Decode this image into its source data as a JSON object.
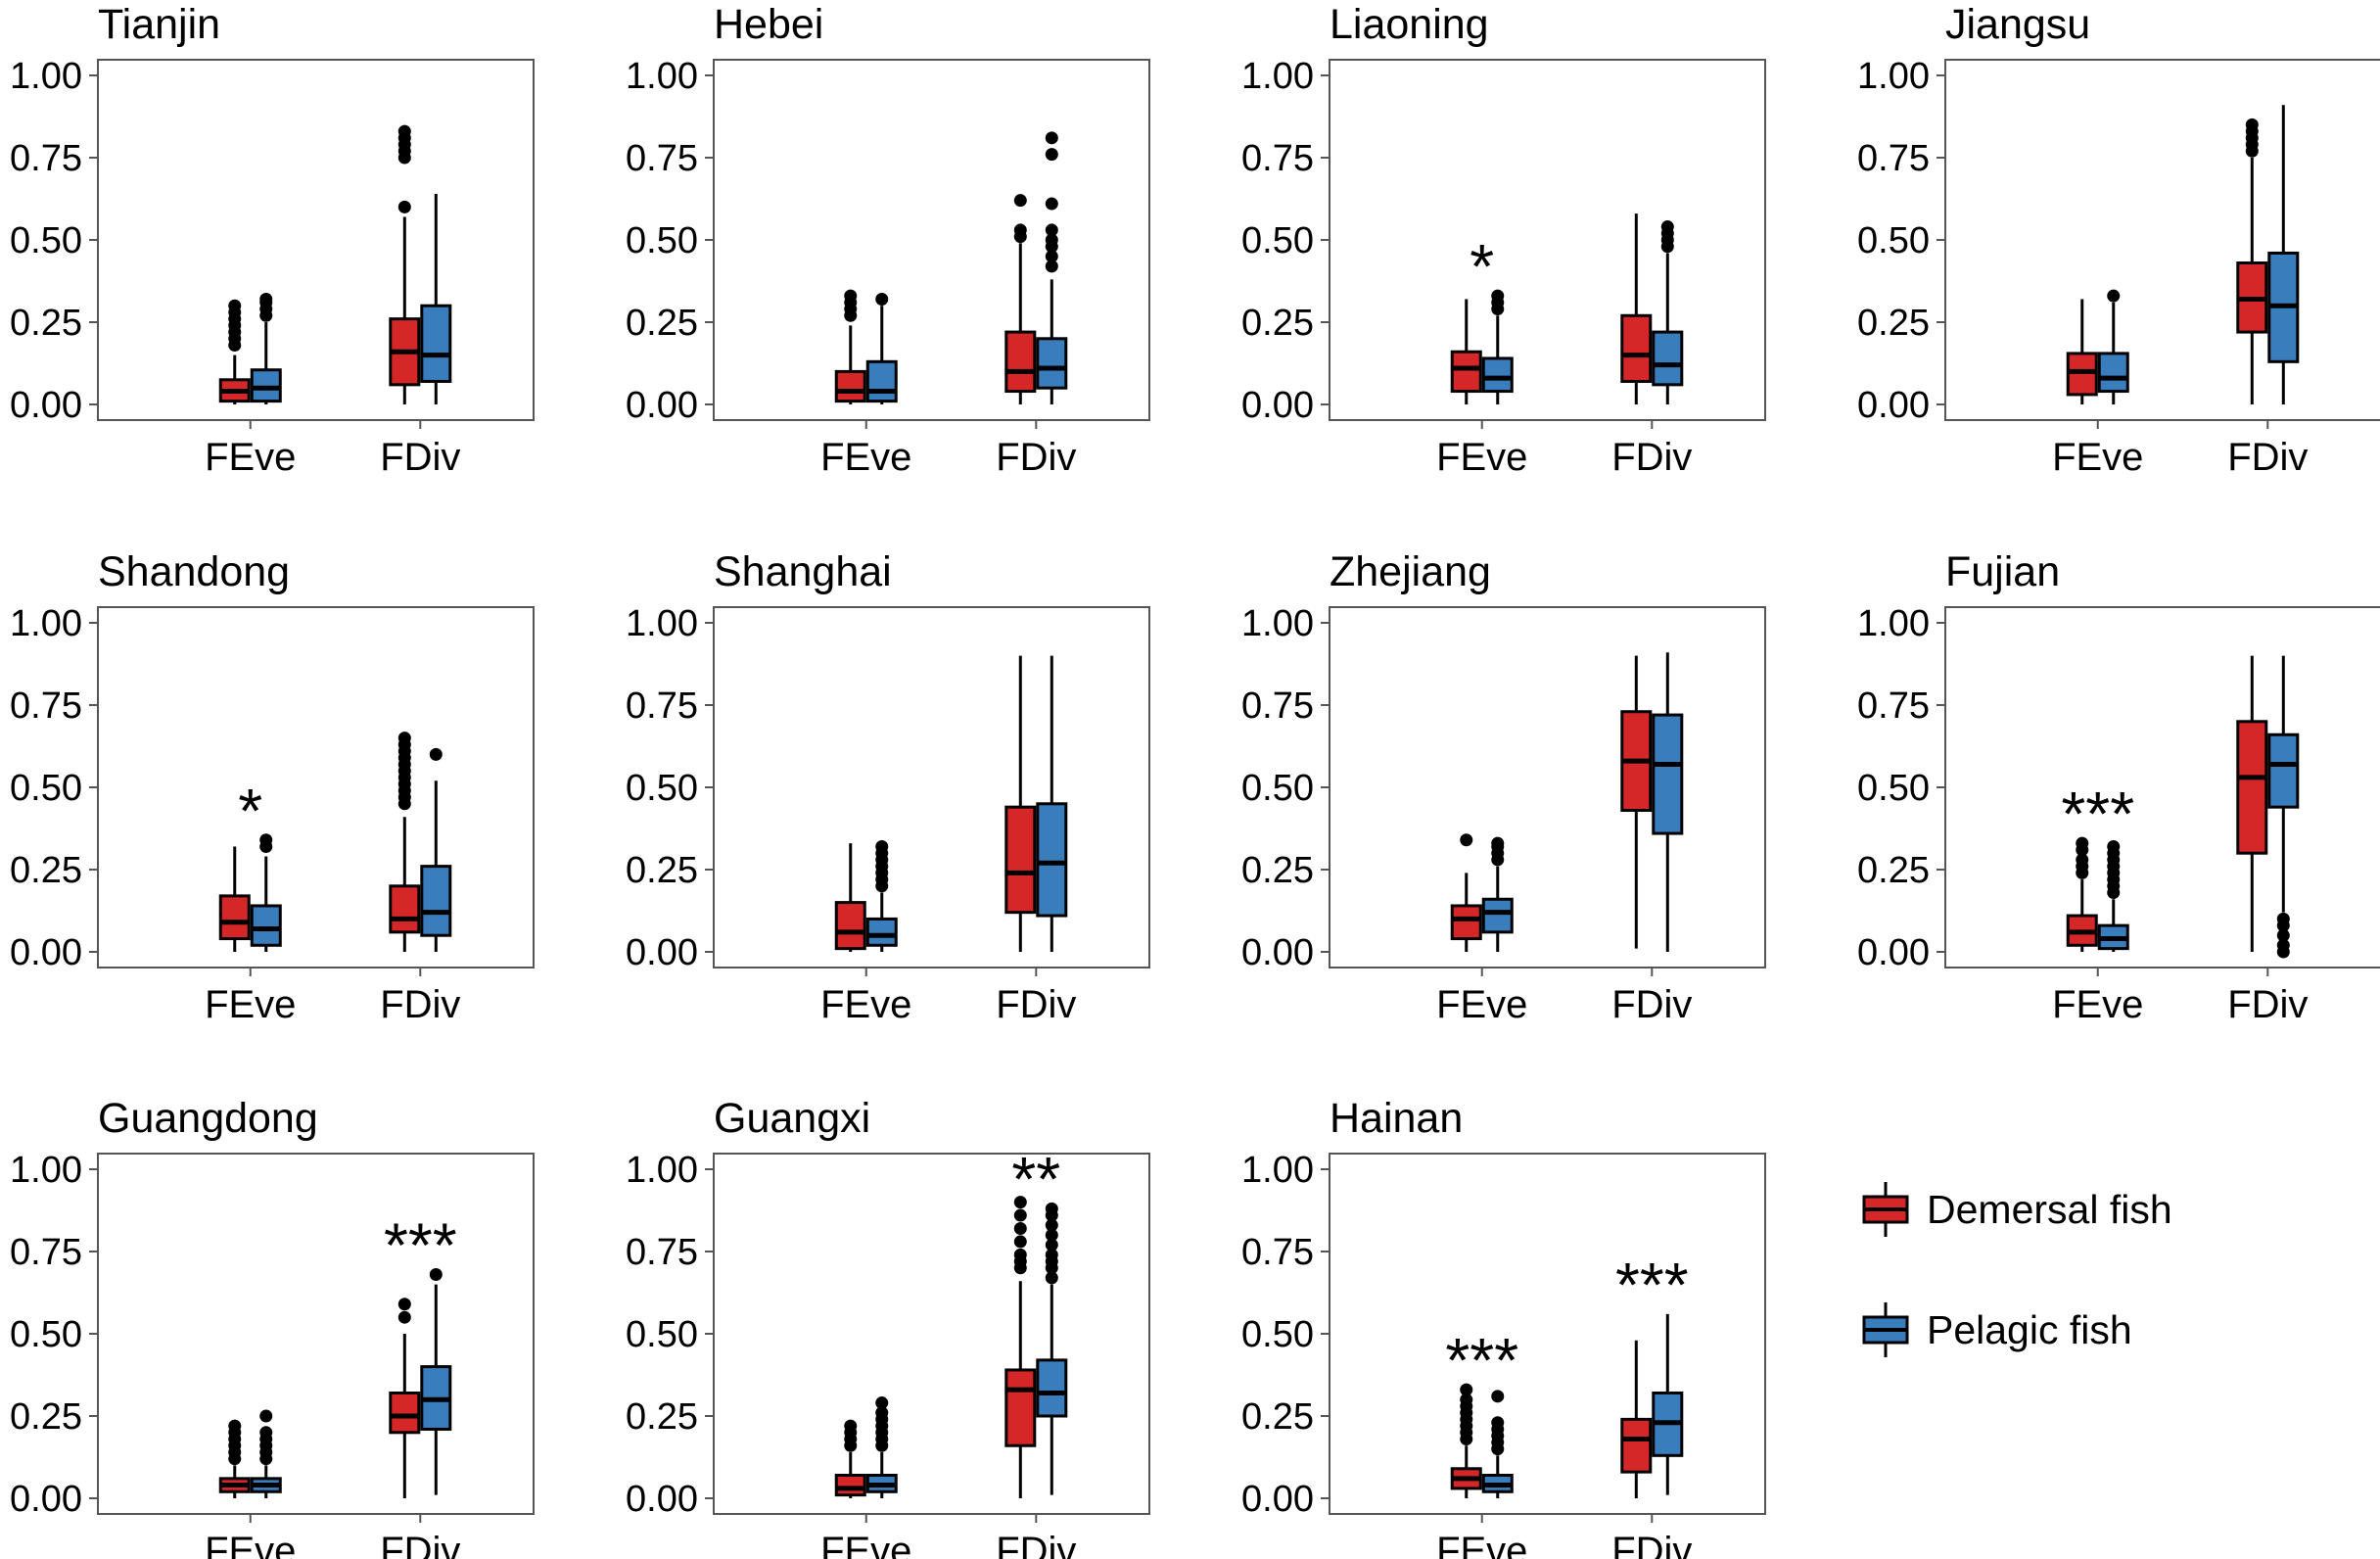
{
  "colors": {
    "demersal": "#d62728",
    "pelagic": "#3a7dbd",
    "frame": "#555555",
    "ink": "#000000"
  },
  "legend": {
    "items": [
      {
        "label": "Demersal fish",
        "series": "demersal"
      },
      {
        "label": "Pelagic fish",
        "series": "pelagic"
      }
    ]
  },
  "chart_data": [
    {
      "type": "boxplot",
      "title": "Tianjin",
      "categories": [
        "FEve",
        "FDiv"
      ],
      "ylim": [
        0,
        1
      ],
      "yticks": [
        "0.00",
        "0.25",
        "0.50",
        "0.75",
        "1.00"
      ],
      "series": [
        {
          "name": "Demersal fish",
          "key": "demersal",
          "boxes": [
            {
              "min": 0.0,
              "q1": 0.01,
              "median": 0.04,
              "q3": 0.075,
              "max": 0.15,
              "outliers": [
                0.18,
                0.2,
                0.22,
                0.24,
                0.26,
                0.28,
                0.3
              ]
            },
            {
              "min": 0.0,
              "q1": 0.06,
              "median": 0.16,
              "q3": 0.26,
              "max": 0.57,
              "outliers": [
                0.6,
                0.75,
                0.77,
                0.79,
                0.81,
                0.83
              ]
            }
          ]
        },
        {
          "name": "Pelagic fish",
          "key": "pelagic",
          "boxes": [
            {
              "min": 0.0,
              "q1": 0.01,
              "median": 0.05,
              "q3": 0.105,
              "max": 0.25,
              "outliers": [
                0.27,
                0.29,
                0.31,
                0.32
              ]
            },
            {
              "min": 0.0,
              "q1": 0.07,
              "median": 0.15,
              "q3": 0.3,
              "max": 0.64,
              "outliers": []
            }
          ]
        }
      ],
      "significance": [
        "",
        ""
      ]
    },
    {
      "type": "boxplot",
      "title": "Hebei",
      "categories": [
        "FEve",
        "FDiv"
      ],
      "ylim": [
        0,
        1
      ],
      "yticks": [
        "0.00",
        "0.25",
        "0.50",
        "0.75",
        "1.00"
      ],
      "series": [
        {
          "name": "Demersal fish",
          "key": "demersal",
          "boxes": [
            {
              "min": 0.0,
              "q1": 0.01,
              "median": 0.04,
              "q3": 0.1,
              "max": 0.24,
              "outliers": [
                0.27,
                0.29,
                0.31,
                0.33
              ]
            },
            {
              "min": 0.0,
              "q1": 0.04,
              "median": 0.1,
              "q3": 0.22,
              "max": 0.49,
              "outliers": [
                0.51,
                0.53,
                0.62
              ]
            }
          ]
        },
        {
          "name": "Pelagic fish",
          "key": "pelagic",
          "boxes": [
            {
              "min": 0.0,
              "q1": 0.01,
              "median": 0.04,
              "q3": 0.13,
              "max": 0.3,
              "outliers": [
                0.32
              ]
            },
            {
              "min": 0.0,
              "q1": 0.05,
              "median": 0.11,
              "q3": 0.2,
              "max": 0.38,
              "outliers": [
                0.42,
                0.45,
                0.48,
                0.5,
                0.53,
                0.61,
                0.76,
                0.81
              ]
            }
          ]
        }
      ],
      "significance": [
        "",
        ""
      ]
    },
    {
      "type": "boxplot",
      "title": "Liaoning",
      "categories": [
        "FEve",
        "FDiv"
      ],
      "ylim": [
        0,
        1
      ],
      "yticks": [
        "0.00",
        "0.25",
        "0.50",
        "0.75",
        "1.00"
      ],
      "series": [
        {
          "name": "Demersal fish",
          "key": "demersal",
          "boxes": [
            {
              "min": 0.0,
              "q1": 0.04,
              "median": 0.11,
              "q3": 0.16,
              "max": 0.32,
              "outliers": []
            },
            {
              "min": 0.0,
              "q1": 0.07,
              "median": 0.15,
              "q3": 0.27,
              "max": 0.58,
              "outliers": []
            }
          ]
        },
        {
          "name": "Pelagic fish",
          "key": "pelagic",
          "boxes": [
            {
              "min": 0.0,
              "q1": 0.04,
              "median": 0.08,
              "q3": 0.14,
              "max": 0.27,
              "outliers": [
                0.29,
                0.31,
                0.33
              ]
            },
            {
              "min": 0.0,
              "q1": 0.06,
              "median": 0.12,
              "q3": 0.22,
              "max": 0.46,
              "outliers": [
                0.48,
                0.5,
                0.52,
                0.54
              ]
            }
          ]
        }
      ],
      "significance": [
        "*",
        ""
      ]
    },
    {
      "type": "boxplot",
      "title": "Jiangsu",
      "categories": [
        "FEve",
        "FDiv"
      ],
      "ylim": [
        0,
        1
      ],
      "yticks": [
        "0.00",
        "0.25",
        "0.50",
        "0.75",
        "1.00"
      ],
      "series": [
        {
          "name": "Demersal fish",
          "key": "demersal",
          "boxes": [
            {
              "min": 0.0,
              "q1": 0.03,
              "median": 0.1,
              "q3": 0.155,
              "max": 0.32,
              "outliers": []
            },
            {
              "min": 0.0,
              "q1": 0.22,
              "median": 0.32,
              "q3": 0.43,
              "max": 0.75,
              "outliers": [
                0.77,
                0.79,
                0.81,
                0.83,
                0.85
              ]
            }
          ]
        },
        {
          "name": "Pelagic fish",
          "key": "pelagic",
          "boxes": [
            {
              "min": 0.0,
              "q1": 0.04,
              "median": 0.08,
              "q3": 0.155,
              "max": 0.31,
              "outliers": [
                0.33
              ]
            },
            {
              "min": 0.0,
              "q1": 0.13,
              "median": 0.3,
              "q3": 0.46,
              "max": 0.91,
              "outliers": []
            }
          ]
        }
      ],
      "significance": [
        "",
        ""
      ]
    },
    {
      "type": "boxplot",
      "title": "Shandong",
      "categories": [
        "FEve",
        "FDiv"
      ],
      "ylim": [
        0,
        1
      ],
      "yticks": [
        "0.00",
        "0.25",
        "0.50",
        "0.75",
        "1.00"
      ],
      "series": [
        {
          "name": "Demersal fish",
          "key": "demersal",
          "boxes": [
            {
              "min": 0.0,
              "q1": 0.04,
              "median": 0.09,
              "q3": 0.17,
              "max": 0.32,
              "outliers": []
            },
            {
              "min": 0.0,
              "q1": 0.06,
              "median": 0.1,
              "q3": 0.2,
              "max": 0.41,
              "outliers": [
                0.45,
                0.47,
                0.49,
                0.51,
                0.53,
                0.55,
                0.57,
                0.59,
                0.61,
                0.63,
                0.65
              ]
            }
          ]
        },
        {
          "name": "Pelagic fish",
          "key": "pelagic",
          "boxes": [
            {
              "min": 0.0,
              "q1": 0.02,
              "median": 0.07,
              "q3": 0.14,
              "max": 0.29,
              "outliers": [
                0.32,
                0.34
              ]
            },
            {
              "min": 0.0,
              "q1": 0.05,
              "median": 0.12,
              "q3": 0.26,
              "max": 0.52,
              "outliers": [
                0.6
              ]
            }
          ]
        }
      ],
      "significance": [
        "*",
        ""
      ]
    },
    {
      "type": "boxplot",
      "title": "Shanghai",
      "categories": [
        "FEve",
        "FDiv"
      ],
      "ylim": [
        0,
        1
      ],
      "yticks": [
        "0.00",
        "0.25",
        "0.50",
        "0.75",
        "1.00"
      ],
      "series": [
        {
          "name": "Demersal fish",
          "key": "demersal",
          "boxes": [
            {
              "min": 0.0,
              "q1": 0.01,
              "median": 0.06,
              "q3": 0.15,
              "max": 0.33,
              "outliers": []
            },
            {
              "min": 0.0,
              "q1": 0.12,
              "median": 0.24,
              "q3": 0.44,
              "max": 0.9,
              "outliers": []
            }
          ]
        },
        {
          "name": "Pelagic fish",
          "key": "pelagic",
          "boxes": [
            {
              "min": 0.0,
              "q1": 0.02,
              "median": 0.05,
              "q3": 0.1,
              "max": 0.18,
              "outliers": [
                0.2,
                0.22,
                0.24,
                0.26,
                0.28,
                0.3,
                0.32
              ]
            },
            {
              "min": 0.0,
              "q1": 0.11,
              "median": 0.27,
              "q3": 0.45,
              "max": 0.9,
              "outliers": []
            }
          ]
        }
      ],
      "significance": [
        "",
        ""
      ]
    },
    {
      "type": "boxplot",
      "title": "Zhejiang",
      "categories": [
        "FEve",
        "FDiv"
      ],
      "ylim": [
        0,
        1
      ],
      "yticks": [
        "0.00",
        "0.25",
        "0.50",
        "0.75",
        "1.00"
      ],
      "series": [
        {
          "name": "Demersal fish",
          "key": "demersal",
          "boxes": [
            {
              "min": 0.0,
              "q1": 0.04,
              "median": 0.1,
              "q3": 0.14,
              "max": 0.24,
              "outliers": [
                0.34
              ]
            },
            {
              "min": 0.01,
              "q1": 0.43,
              "median": 0.58,
              "q3": 0.73,
              "max": 0.9,
              "outliers": []
            }
          ]
        },
        {
          "name": "Pelagic fish",
          "key": "pelagic",
          "boxes": [
            {
              "min": 0.0,
              "q1": 0.06,
              "median": 0.12,
              "q3": 0.16,
              "max": 0.26,
              "outliers": [
                0.28,
                0.3,
                0.32,
                0.33
              ]
            },
            {
              "min": 0.0,
              "q1": 0.36,
              "median": 0.57,
              "q3": 0.72,
              "max": 0.91,
              "outliers": []
            }
          ]
        }
      ],
      "significance": [
        "",
        ""
      ]
    },
    {
      "type": "boxplot",
      "title": "Fujian",
      "categories": [
        "FEve",
        "FDiv"
      ],
      "ylim": [
        0,
        1
      ],
      "yticks": [
        "0.00",
        "0.25",
        "0.50",
        "0.75",
        "1.00"
      ],
      "series": [
        {
          "name": "Demersal fish",
          "key": "demersal",
          "boxes": [
            {
              "min": 0.0,
              "q1": 0.02,
              "median": 0.06,
              "q3": 0.11,
              "max": 0.22,
              "outliers": [
                0.24,
                0.26,
                0.28,
                0.31,
                0.33
              ]
            },
            {
              "min": 0.0,
              "q1": 0.3,
              "median": 0.53,
              "q3": 0.7,
              "max": 0.9,
              "outliers": []
            }
          ]
        },
        {
          "name": "Pelagic fish",
          "key": "pelagic",
          "boxes": [
            {
              "min": 0.0,
              "q1": 0.01,
              "median": 0.04,
              "q3": 0.08,
              "max": 0.16,
              "outliers": [
                0.18,
                0.2,
                0.22,
                0.24,
                0.26,
                0.28,
                0.3,
                0.32
              ]
            },
            {
              "min": 0.12,
              "q1": 0.44,
              "median": 0.57,
              "q3": 0.66,
              "max": 0.9,
              "outliers": [
                0.0,
                0.02,
                0.05,
                0.08,
                0.1
              ]
            }
          ]
        }
      ],
      "significance": [
        "***",
        ""
      ]
    },
    {
      "type": "boxplot",
      "title": "Guangdong",
      "categories": [
        "FEve",
        "FDiv"
      ],
      "ylim": [
        0,
        1
      ],
      "yticks": [
        "0.00",
        "0.25",
        "0.50",
        "0.75",
        "1.00"
      ],
      "series": [
        {
          "name": "Demersal fish",
          "key": "demersal",
          "boxes": [
            {
              "min": 0.0,
              "q1": 0.02,
              "median": 0.04,
              "q3": 0.06,
              "max": 0.1,
              "outliers": [
                0.12,
                0.14,
                0.16,
                0.18,
                0.2,
                0.22
              ]
            },
            {
              "min": 0.0,
              "q1": 0.2,
              "median": 0.25,
              "q3": 0.32,
              "max": 0.5,
              "outliers": [
                0.55,
                0.59
              ]
            }
          ]
        },
        {
          "name": "Pelagic fish",
          "key": "pelagic",
          "boxes": [
            {
              "min": 0.0,
              "q1": 0.02,
              "median": 0.04,
              "q3": 0.06,
              "max": 0.1,
              "outliers": [
                0.12,
                0.14,
                0.16,
                0.18,
                0.2,
                0.25
              ]
            },
            {
              "min": 0.01,
              "q1": 0.21,
              "median": 0.3,
              "q3": 0.4,
              "max": 0.65,
              "outliers": [
                0.68
              ]
            }
          ]
        }
      ],
      "significance": [
        "",
        "***"
      ]
    },
    {
      "type": "boxplot",
      "title": "Guangxi",
      "categories": [
        "FEve",
        "FDiv"
      ],
      "ylim": [
        0,
        1
      ],
      "yticks": [
        "0.00",
        "0.25",
        "0.50",
        "0.75",
        "1.00"
      ],
      "series": [
        {
          "name": "Demersal fish",
          "key": "demersal",
          "boxes": [
            {
              "min": 0.0,
              "q1": 0.01,
              "median": 0.03,
              "q3": 0.07,
              "max": 0.14,
              "outliers": [
                0.16,
                0.18,
                0.2,
                0.22
              ]
            },
            {
              "min": 0.0,
              "q1": 0.16,
              "median": 0.33,
              "q3": 0.39,
              "max": 0.66,
              "outliers": [
                0.7,
                0.72,
                0.74,
                0.78,
                0.82,
                0.86,
                0.9
              ]
            }
          ]
        },
        {
          "name": "Pelagic fish",
          "key": "pelagic",
          "boxes": [
            {
              "min": 0.0,
              "q1": 0.02,
              "median": 0.04,
              "q3": 0.07,
              "max": 0.14,
              "outliers": [
                0.16,
                0.18,
                0.2,
                0.22,
                0.24,
                0.26,
                0.29
              ]
            },
            {
              "min": 0.01,
              "q1": 0.25,
              "median": 0.32,
              "q3": 0.42,
              "max": 0.65,
              "outliers": [
                0.67,
                0.7,
                0.72,
                0.74,
                0.77,
                0.8,
                0.83,
                0.86,
                0.88
              ]
            }
          ]
        }
      ],
      "significance": [
        "",
        "**"
      ]
    },
    {
      "type": "boxplot",
      "title": "Hainan",
      "categories": [
        "FEve",
        "FDiv"
      ],
      "ylim": [
        0,
        1
      ],
      "yticks": [
        "0.00",
        "0.25",
        "0.50",
        "0.75",
        "1.00"
      ],
      "series": [
        {
          "name": "Demersal fish",
          "key": "demersal",
          "boxes": [
            {
              "min": 0.0,
              "q1": 0.03,
              "median": 0.06,
              "q3": 0.09,
              "max": 0.16,
              "outliers": [
                0.18,
                0.2,
                0.22,
                0.24,
                0.26,
                0.28,
                0.3,
                0.33
              ]
            },
            {
              "min": 0.0,
              "q1": 0.08,
              "median": 0.18,
              "q3": 0.24,
              "max": 0.48,
              "outliers": []
            }
          ]
        },
        {
          "name": "Pelagic fish",
          "key": "pelagic",
          "boxes": [
            {
              "min": 0.0,
              "q1": 0.02,
              "median": 0.04,
              "q3": 0.07,
              "max": 0.13,
              "outliers": [
                0.15,
                0.17,
                0.19,
                0.21,
                0.23,
                0.31
              ]
            },
            {
              "min": 0.01,
              "q1": 0.13,
              "median": 0.23,
              "q3": 0.32,
              "max": 0.56,
              "outliers": []
            }
          ]
        }
      ],
      "significance": [
        "***",
        "***"
      ]
    }
  ]
}
